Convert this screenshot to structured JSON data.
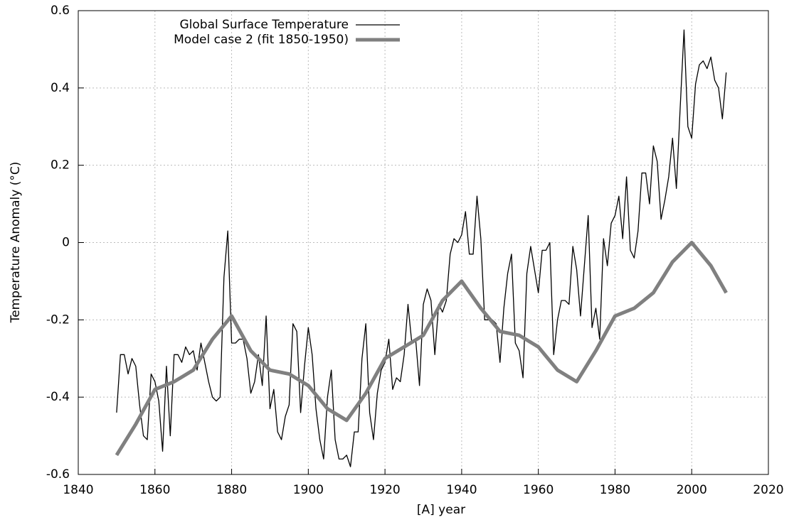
{
  "chart_data": {
    "type": "line",
    "xlabel": "[A]   year",
    "ylabel": "Temperature Anomaly (°C)",
    "xlim": [
      1840,
      2020
    ],
    "xticks": [
      1840,
      1860,
      1880,
      1900,
      1920,
      1940,
      1960,
      1980,
      2000,
      2020
    ],
    "ylim": [
      -0.6,
      0.6
    ],
    "yticks": [
      -0.6,
      -0.4,
      -0.2,
      0,
      0.2,
      0.4,
      0.6
    ],
    "grid": true,
    "legend": "upper left",
    "series": [
      {
        "name": "Global Surface Temperature",
        "color": "#000000",
        "width": 1.3,
        "x": [
          1850,
          1851,
          1852,
          1853,
          1854,
          1855,
          1856,
          1857,
          1858,
          1859,
          1860,
          1861,
          1862,
          1863,
          1864,
          1865,
          1866,
          1867,
          1868,
          1869,
          1870,
          1871,
          1872,
          1873,
          1874,
          1875,
          1876,
          1877,
          1878,
          1879,
          1880,
          1881,
          1882,
          1883,
          1884,
          1885,
          1886,
          1887,
          1888,
          1889,
          1890,
          1891,
          1892,
          1893,
          1894,
          1895,
          1896,
          1897,
          1898,
          1899,
          1900,
          1901,
          1902,
          1903,
          1904,
          1905,
          1906,
          1907,
          1908,
          1909,
          1910,
          1911,
          1912,
          1913,
          1914,
          1915,
          1916,
          1917,
          1918,
          1919,
          1920,
          1921,
          1922,
          1923,
          1924,
          1925,
          1926,
          1927,
          1928,
          1929,
          1930,
          1931,
          1932,
          1933,
          1934,
          1935,
          1936,
          1937,
          1938,
          1939,
          1940,
          1941,
          1942,
          1943,
          1944,
          1945,
          1946,
          1947,
          1948,
          1949,
          1950,
          1951,
          1952,
          1953,
          1954,
          1955,
          1956,
          1957,
          1958,
          1959,
          1960,
          1961,
          1962,
          1963,
          1964,
          1965,
          1966,
          1967,
          1968,
          1969,
          1970,
          1971,
          1972,
          1973,
          1974,
          1975,
          1976,
          1977,
          1978,
          1979,
          1980,
          1981,
          1982,
          1983,
          1984,
          1985,
          1986,
          1987,
          1988,
          1989,
          1990,
          1991,
          1992,
          1993,
          1994,
          1995,
          1996,
          1997,
          1998,
          1999,
          2000,
          2001,
          2002,
          2003,
          2004,
          2005,
          2006,
          2007,
          2008,
          2009
        ],
        "values": [
          -0.44,
          -0.29,
          -0.29,
          -0.34,
          -0.3,
          -0.32,
          -0.42,
          -0.5,
          -0.51,
          -0.34,
          -0.36,
          -0.41,
          -0.54,
          -0.32,
          -0.5,
          -0.29,
          -0.29,
          -0.31,
          -0.27,
          -0.29,
          -0.28,
          -0.33,
          -0.26,
          -0.31,
          -0.36,
          -0.4,
          -0.41,
          -0.4,
          -0.09,
          0.03,
          -0.26,
          -0.26,
          -0.25,
          -0.25,
          -0.3,
          -0.39,
          -0.36,
          -0.29,
          -0.37,
          -0.19,
          -0.43,
          -0.38,
          -0.49,
          -0.51,
          -0.45,
          -0.42,
          -0.21,
          -0.23,
          -0.44,
          -0.32,
          -0.22,
          -0.29,
          -0.43,
          -0.51,
          -0.56,
          -0.4,
          -0.33,
          -0.51,
          -0.56,
          -0.56,
          -0.55,
          -0.58,
          -0.49,
          -0.49,
          -0.3,
          -0.21,
          -0.44,
          -0.51,
          -0.39,
          -0.33,
          -0.31,
          -0.25,
          -0.38,
          -0.35,
          -0.36,
          -0.29,
          -0.16,
          -0.26,
          -0.25,
          -0.37,
          -0.16,
          -0.12,
          -0.15,
          -0.29,
          -0.16,
          -0.18,
          -0.15,
          -0.03,
          0.01,
          0.0,
          0.02,
          0.08,
          -0.03,
          -0.03,
          0.12,
          0.01,
          -0.2,
          -0.2,
          -0.2,
          -0.21,
          -0.31,
          -0.17,
          -0.08,
          -0.03,
          -0.26,
          -0.28,
          -0.35,
          -0.08,
          -0.01,
          -0.07,
          -0.13,
          -0.02,
          -0.02,
          0.0,
          -0.29,
          -0.2,
          -0.15,
          -0.15,
          -0.16,
          -0.01,
          -0.07,
          -0.19,
          -0.06,
          0.07,
          -0.22,
          -0.17,
          -0.25,
          0.01,
          -0.06,
          0.05,
          0.07,
          0.12,
          0.01,
          0.17,
          -0.02,
          -0.04,
          0.03,
          0.18,
          0.18,
          0.1,
          0.25,
          0.21,
          0.06,
          0.11,
          0.17,
          0.27,
          0.14,
          0.35,
          0.55,
          0.3,
          0.27,
          0.41,
          0.46,
          0.47,
          0.45,
          0.48,
          0.42,
          0.4,
          0.32,
          0.44
        ]
      },
      {
        "name": "Model case 2 (fit 1850-1950)",
        "color": "#808080",
        "width": 5,
        "x": [
          1850,
          1855,
          1860,
          1865,
          1870,
          1875,
          1880,
          1885,
          1890,
          1895,
          1900,
          1905,
          1910,
          1915,
          1920,
          1925,
          1930,
          1935,
          1940,
          1945,
          1950,
          1955,
          1960,
          1965,
          1970,
          1975,
          1980,
          1985,
          1990,
          1995,
          2000,
          2005,
          2009
        ],
        "values": [
          -0.55,
          -0.47,
          -0.38,
          -0.36,
          -0.33,
          -0.25,
          -0.19,
          -0.28,
          -0.33,
          -0.34,
          -0.37,
          -0.43,
          -0.46,
          -0.39,
          -0.3,
          -0.27,
          -0.24,
          -0.15,
          -0.1,
          -0.17,
          -0.23,
          -0.24,
          -0.27,
          -0.33,
          -0.36,
          -0.28,
          -0.19,
          -0.17,
          -0.13,
          -0.05,
          0.0,
          -0.06,
          -0.13
        ]
      }
    ]
  }
}
